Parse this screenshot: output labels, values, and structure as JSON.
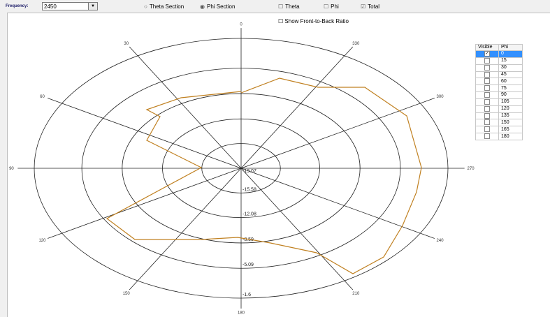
{
  "toolbar": {
    "frequency_label": "Frequency:",
    "frequency_value": "2450",
    "theta_section_label": "Theta Section",
    "phi_section_label": "Phi Section",
    "theta_label": "Theta",
    "phi_label": "Phi",
    "total_label": "Total",
    "show_front_back_label": "Show Front-to-Back Ratio"
  },
  "polar": {
    "angle_labels": [
      "0",
      "30",
      "60",
      "90",
      "120",
      "150",
      "180",
      "210",
      "240",
      "270",
      "300",
      "330"
    ],
    "ring_labels": [
      "-19.07",
      "-15.58",
      "-12.08",
      "-8.59",
      "-5.09",
      "-1.6"
    ],
    "pattern_color": "#c08020"
  },
  "table": {
    "headers": [
      "Visible",
      "Phi"
    ],
    "rows": [
      {
        "phi": "0",
        "checked": true,
        "selected": true
      },
      {
        "phi": "15",
        "checked": false
      },
      {
        "phi": "30",
        "checked": false
      },
      {
        "phi": "45",
        "checked": false
      },
      {
        "phi": "60",
        "checked": false
      },
      {
        "phi": "75",
        "checked": false
      },
      {
        "phi": "90",
        "checked": false
      },
      {
        "phi": "105",
        "checked": false
      },
      {
        "phi": "120",
        "checked": false
      },
      {
        "phi": "135",
        "checked": false
      },
      {
        "phi": "150",
        "checked": false
      },
      {
        "phi": "165",
        "checked": false
      },
      {
        "phi": "180",
        "checked": false
      }
    ]
  }
}
